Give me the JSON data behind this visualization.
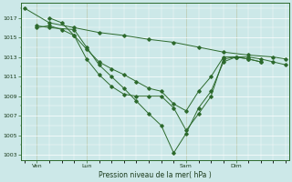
{
  "bg_color": "#cce8e8",
  "grid_color": "#ffffff",
  "line_color": "#2d6a2d",
  "xlabel": "Pression niveau de la mer( hPa )",
  "ylim_min": 1002.5,
  "ylim_max": 1018.5,
  "xlim_min": -0.5,
  "xlim_max": 42.5,
  "yticks": [
    1003,
    1005,
    1007,
    1009,
    1011,
    1013,
    1015,
    1017
  ],
  "xtick_labels": [
    "Ven",
    "Lun",
    "Sam",
    "Dim"
  ],
  "xtick_positions": [
    2,
    10,
    26,
    34
  ],
  "vline_positions": [
    2,
    10,
    26,
    34
  ],
  "s1_x": [
    0,
    4,
    8,
    12,
    16,
    20,
    24,
    28,
    32,
    36,
    40,
    42
  ],
  "s1_y": [
    1018.0,
    1016.5,
    1016.0,
    1015.5,
    1015.2,
    1014.8,
    1014.5,
    1014.0,
    1013.5,
    1013.2,
    1013.0,
    1012.8
  ],
  "s2_x": [
    2,
    4,
    8,
    10,
    12,
    14,
    16,
    18,
    20,
    22,
    24,
    26,
    28,
    30,
    32,
    34,
    36,
    38,
    40,
    42
  ],
  "s2_y": [
    1016.2,
    1016.0,
    1015.8,
    1014.0,
    1012.2,
    1011.0,
    1009.8,
    1008.5,
    1007.2,
    1006.0,
    1003.2,
    1005.2,
    1007.8,
    1009.5,
    1012.5,
    1013.0,
    1013.0,
    1012.8,
    1012.5,
    1012.2
  ],
  "s3_x": [
    2,
    4,
    6,
    8,
    10,
    12,
    14,
    16,
    18,
    20,
    22,
    24,
    26,
    28,
    30,
    32,
    34,
    36,
    38
  ],
  "s3_y": [
    1016.0,
    1016.2,
    1015.8,
    1015.2,
    1012.8,
    1011.2,
    1010.0,
    1009.2,
    1009.0,
    1009.0,
    1009.0,
    1007.8,
    1005.5,
    1007.2,
    1009.0,
    1012.8,
    1013.0,
    1012.8,
    1012.5
  ],
  "s4_x": [
    4,
    6,
    8,
    10,
    12,
    14,
    16,
    18,
    20,
    22,
    24,
    26,
    28,
    30,
    32,
    34,
    36,
    38
  ],
  "s4_y": [
    1017.0,
    1016.5,
    1015.2,
    1013.8,
    1012.5,
    1011.8,
    1011.2,
    1010.5,
    1009.8,
    1009.5,
    1008.2,
    1007.5,
    1009.5,
    1011.0,
    1013.0,
    1013.0,
    1012.8,
    1012.5
  ]
}
